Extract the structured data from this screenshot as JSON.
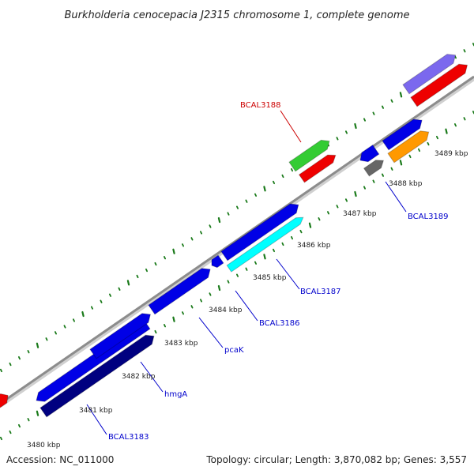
{
  "title": "Burkholderia cenocepacia J2315 chromosome 1, complete genome",
  "footer": {
    "accession": "Accession: NC_011000",
    "summary": "Topology: circular; Length: 3,870,082 bp; Genes: 3,557"
  },
  "colors": {
    "backbone": "#8c8c8c",
    "tick": "#1a7a1a",
    "gene_label_default": "#0000cc",
    "gene_label_highlight": "#cc0000",
    "blue": "#0000e6",
    "navy": "#000080",
    "red": "#ee0000",
    "green": "#33cc33",
    "cyan": "#00ffff",
    "orange": "#ff9900",
    "purple": "#7b68ee",
    "gray": "#666666"
  },
  "scale_labels": [
    "3480 kbp",
    "3481 kbp",
    "3482 kbp",
    "3483 kbp",
    "3484 kbp",
    "3485 kbp",
    "3486 kbp",
    "3487 kbp",
    "3488 kbp",
    "3489 kbp"
  ],
  "gene_labels": [
    {
      "text": "BCAL3188",
      "color": "#cc0000"
    },
    {
      "text": "BCAL3189",
      "color": "#0000cc"
    },
    {
      "text": "BCAL3187",
      "color": "#0000cc"
    },
    {
      "text": "BCAL3186",
      "color": "#0000cc"
    },
    {
      "text": "pcaK",
      "color": "#0000cc"
    },
    {
      "text": "hmgA",
      "color": "#0000cc"
    },
    {
      "text": "BCAL3183",
      "color": "#0000cc"
    }
  ]
}
